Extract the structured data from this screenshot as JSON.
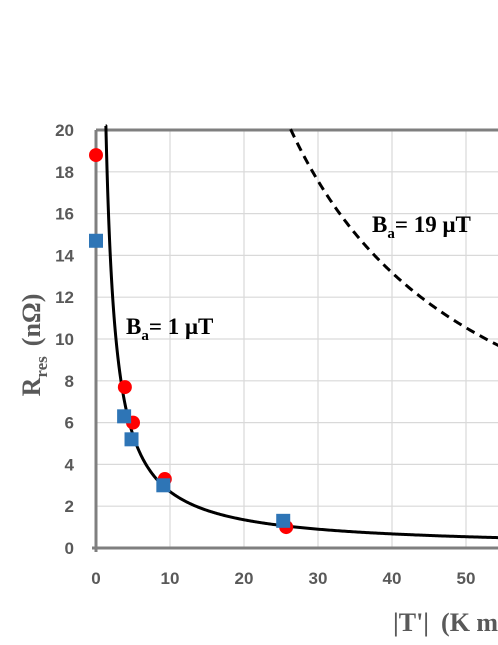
{
  "chart_data": {
    "type": "scatter",
    "title": "",
    "xlim": [
      0,
      60
    ],
    "ylim": [
      0,
      20
    ],
    "x_ticks": [
      0,
      10,
      20,
      30,
      40,
      50
    ],
    "y_ticks": [
      0,
      2,
      4,
      6,
      8,
      10,
      12,
      14,
      16,
      18,
      20
    ],
    "x_tick_labels": [
      "0",
      "10",
      "20",
      "30",
      "40",
      "50"
    ],
    "y_tick_labels": [
      "0",
      "2",
      "4",
      "6",
      "8",
      "10",
      "12",
      "14",
      "16",
      "18",
      "20"
    ],
    "xlabel": {
      "prefix": "|T'|",
      "rest": "(K m"
    },
    "ylabel": {
      "main": "R",
      "sub": "res",
      "unit": "(nΩ)"
    },
    "grid": true,
    "series": [
      {
        "marker": "circle",
        "color": "#ff0000",
        "x": [
          0,
          3.9,
          5.0,
          9.3,
          25.7
        ],
        "y": [
          18.8,
          7.7,
          6.0,
          3.3,
          1.0
        ]
      },
      {
        "marker": "square",
        "color": "#2e75b6",
        "x": [
          0,
          3.8,
          4.8,
          9.1,
          25.3
        ],
        "y": [
          14.7,
          6.3,
          5.2,
          3.0,
          1.3
        ]
      }
    ],
    "curves": [
      {
        "style": "solid",
        "color": "#000000",
        "k": 27.0,
        "x_range": [
          1.3,
          60
        ]
      },
      {
        "style": "dashed",
        "color": "#000000",
        "k": 527.0,
        "x_range": [
          26.3,
          60
        ]
      }
    ],
    "annotations": [
      {
        "main": "B",
        "sub": "a",
        "rest": "= 1 μT"
      },
      {
        "main": "B",
        "sub": "a",
        "rest": "= 19 μT"
      }
    ],
    "colors": {
      "axis": "#7f7f7f",
      "grid": "#d9d9d9",
      "text": "#595959"
    }
  }
}
